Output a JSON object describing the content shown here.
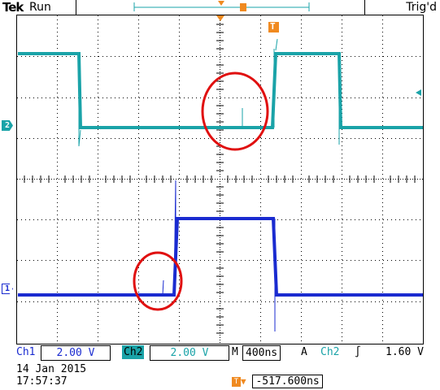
{
  "header": {
    "brand": "Tek",
    "status": "Run",
    "trigger_state": "Trig'd"
  },
  "markers": {
    "ch2_marker": "2",
    "ch1_marker": "1",
    "trigger_marker": "T"
  },
  "footer": {
    "ch1_label": "Ch1",
    "ch1_scale": "2.00 V",
    "ch2_label": "Ch2",
    "ch2_scale": "2.00 V",
    "timebase_label": "M",
    "timebase": "400ns",
    "trigger_label": "A",
    "trigger_source": "Ch2",
    "trigger_slope": "∫",
    "trigger_level": "1.60 V",
    "date": "14 Jan  2015",
    "time": "17:57:37",
    "horizontal_offset": "-517.600ns"
  },
  "colors": {
    "ch1": "#1a2bd0",
    "ch2": "#1aa3a8",
    "trigger": "#f08a20",
    "annotation": "#e01010"
  }
}
